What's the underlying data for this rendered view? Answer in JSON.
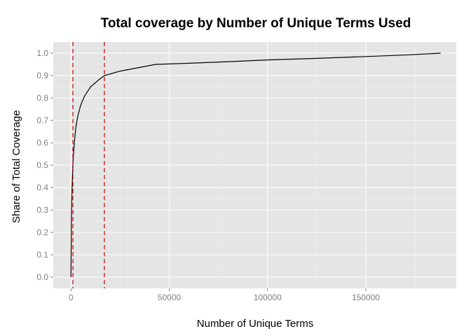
{
  "chart_data": {
    "type": "line",
    "title": "Total coverage by Number of Unique Terms Used",
    "xlabel": "Number of Unique Terms",
    "ylabel": "Share of Total Coverage",
    "xlim": [
      -9000,
      196000
    ],
    "ylim": [
      -0.05,
      1.05
    ],
    "x_ticks": [
      0,
      50000,
      100000,
      150000
    ],
    "x_tick_labels": [
      "0",
      "50000",
      "100000",
      "150000"
    ],
    "y_ticks": [
      0,
      0.1,
      0.2,
      0.3,
      0.4,
      0.5,
      0.6,
      0.7,
      0.8,
      0.9,
      1.0
    ],
    "y_tick_labels": [
      "0.0",
      "0.1",
      "0.2",
      "0.3",
      "0.4",
      "0.5",
      "0.6",
      "0.7",
      "0.8",
      "0.9",
      "1.0"
    ],
    "grid": true,
    "background": "#e5e5e5",
    "grid_color": "#ffffff",
    "series": [
      {
        "color": "#000000",
        "points": [
          [
            0,
            0.0
          ],
          [
            250,
            0.28
          ],
          [
            500,
            0.38
          ],
          [
            800,
            0.46
          ],
          [
            1200,
            0.54
          ],
          [
            1800,
            0.61
          ],
          [
            2500,
            0.67
          ],
          [
            3500,
            0.72
          ],
          [
            5000,
            0.77
          ],
          [
            7000,
            0.81
          ],
          [
            10000,
            0.85
          ],
          [
            14000,
            0.88
          ],
          [
            17000,
            0.9
          ],
          [
            25000,
            0.92
          ],
          [
            43000,
            0.95
          ],
          [
            60000,
            0.955
          ],
          [
            80000,
            0.962
          ],
          [
            100000,
            0.97
          ],
          [
            125000,
            0.977
          ],
          [
            150000,
            0.985
          ],
          [
            170000,
            0.992
          ],
          [
            188000,
            1.0
          ]
        ]
      }
    ],
    "reference_lines": [
      {
        "axis": "x",
        "value": 1000,
        "color": "#cc0000",
        "style": "dashed"
      },
      {
        "axis": "x",
        "value": 17000,
        "color": "#cc0000",
        "style": "dashed"
      }
    ]
  }
}
